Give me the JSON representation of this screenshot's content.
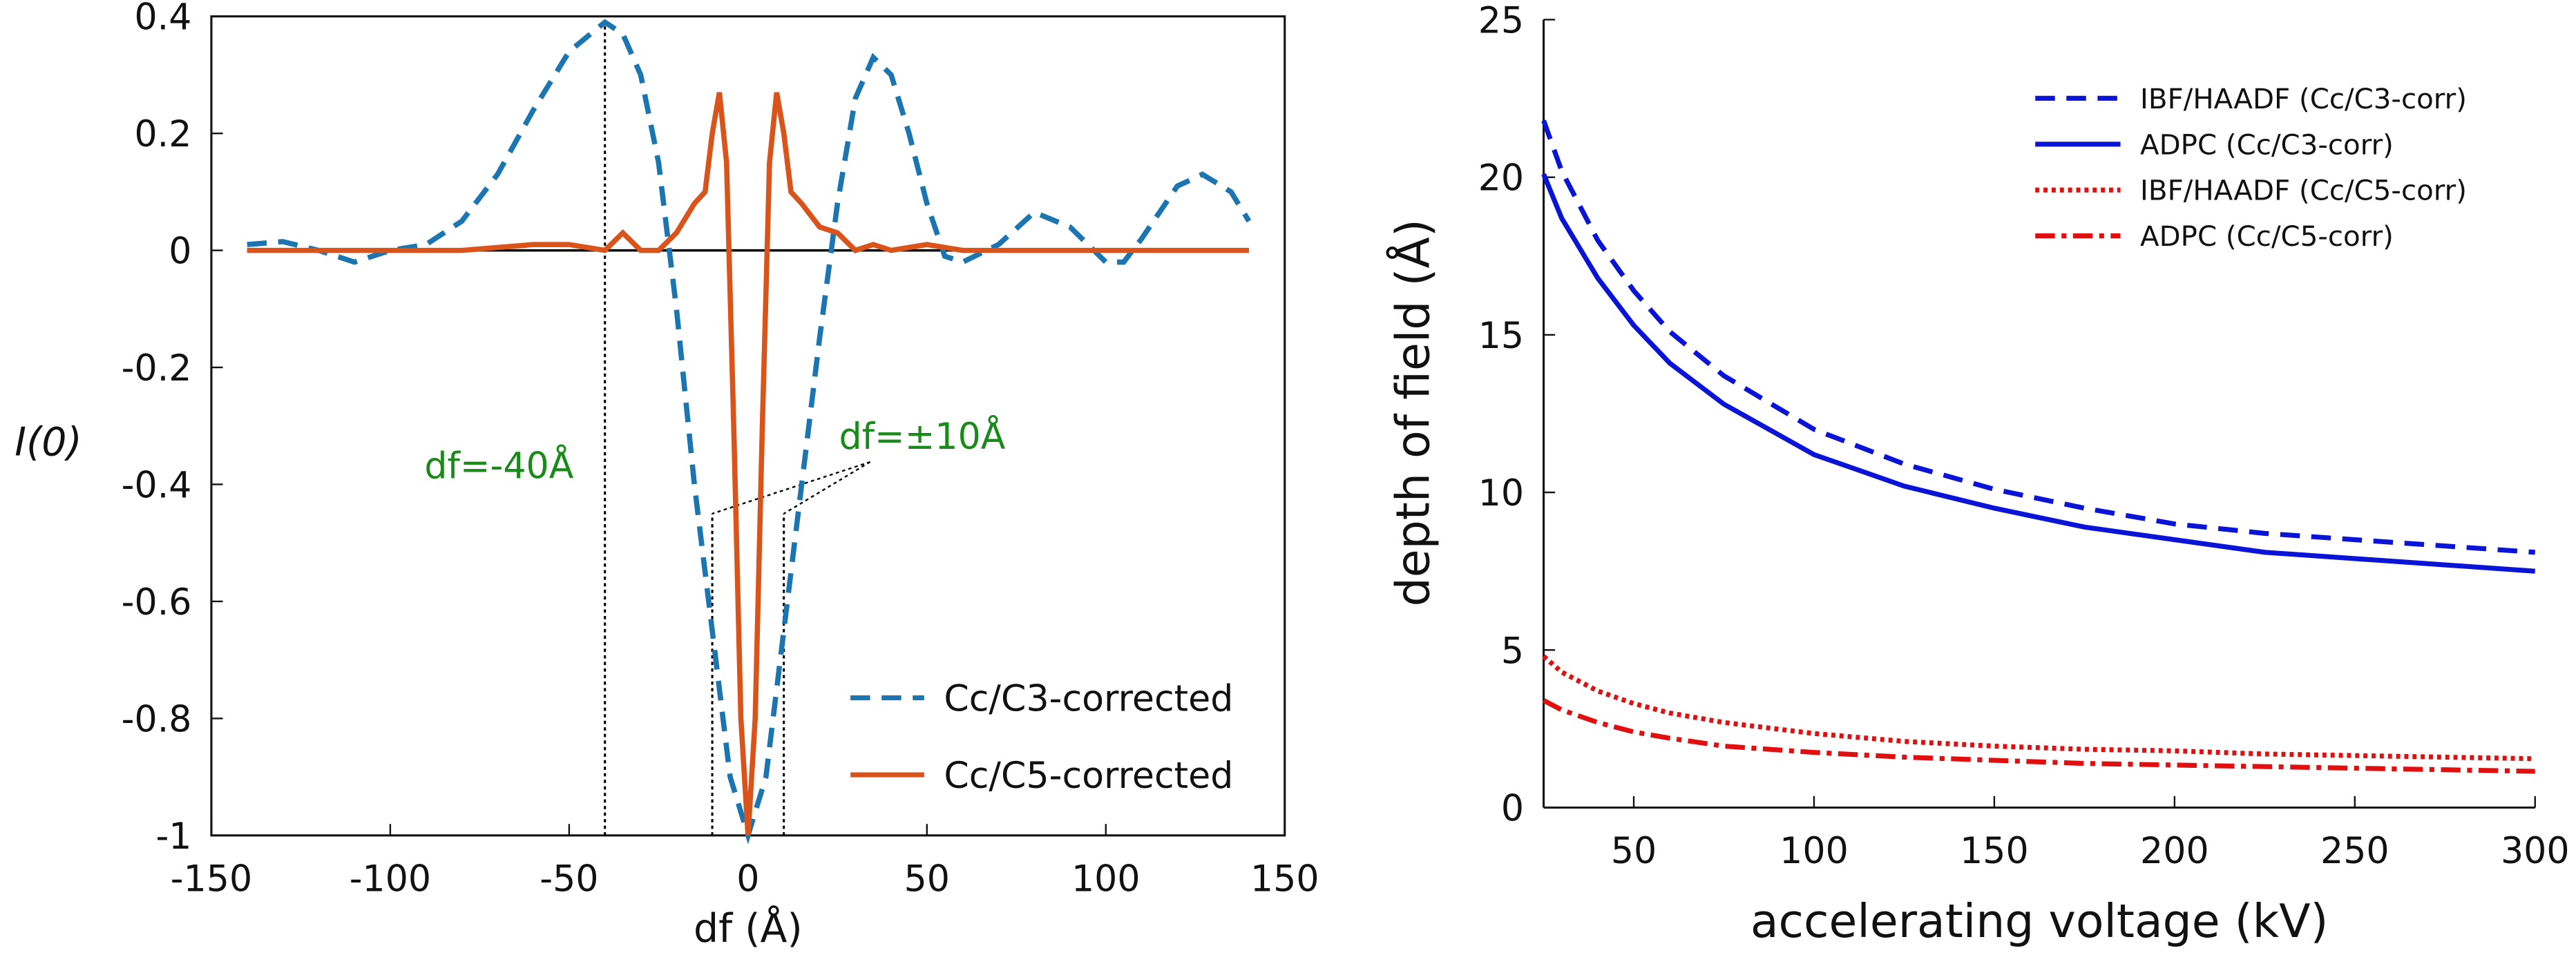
{
  "chart_data": [
    {
      "type": "line",
      "xlabel": "df (Å)",
      "ylabel": "I(0)",
      "xlim": [
        -150,
        150
      ],
      "xticks": [
        -150,
        -100,
        -50,
        0,
        50,
        100,
        150
      ],
      "ylim": [
        -1,
        0.4
      ],
      "yticks": [
        0.4,
        0.2,
        0,
        -0.2,
        -0.4,
        -0.6,
        -0.8,
        -1
      ],
      "legend": "lower right",
      "annotations": [
        "df=-40Å",
        "df=±10Å"
      ],
      "vlines": [
        {
          "x": -40,
          "y1": -1,
          "y2": 0.39
        },
        {
          "x": -10,
          "y1": -1,
          "y2": -0.45
        },
        {
          "x": 10,
          "y1": -1,
          "y2": -0.45
        }
      ],
      "series": [
        {
          "name": "Cc/C3-corrected",
          "color": "#1a75b0",
          "dash": "dashed",
          "x": [
            -140,
            -130,
            -120,
            -110,
            -100,
            -90,
            -80,
            -70,
            -60,
            -50,
            -40,
            -35,
            -30,
            -25,
            -20,
            -15,
            -10,
            -5,
            0,
            5,
            10,
            15,
            20,
            25,
            30,
            35,
            40,
            45,
            50,
            55,
            60,
            70,
            80,
            90,
            100,
            105,
            110,
            120,
            127,
            135,
            140
          ],
          "values": [
            0.01,
            0.015,
            0,
            -0.02,
            0,
            0.01,
            0.05,
            0.13,
            0.24,
            0.34,
            0.39,
            0.37,
            0.3,
            0.15,
            -0.1,
            -0.4,
            -0.65,
            -0.9,
            -1,
            -0.9,
            -0.65,
            -0.4,
            -0.15,
            0.08,
            0.26,
            0.33,
            0.3,
            0.2,
            0.08,
            -0.01,
            -0.02,
            0.01,
            0.065,
            0.04,
            -0.02,
            -0.02,
            0.02,
            0.11,
            0.13,
            0.1,
            0.05
          ]
        },
        {
          "name": "Cc/C5-corrected",
          "color": "#d9541a",
          "dash": "solid",
          "x": [
            -140,
            -120,
            -100,
            -80,
            -60,
            -50,
            -40,
            -35,
            -30,
            -25,
            -20,
            -15,
            -12,
            -10,
            -8,
            -6,
            -4,
            -2,
            0,
            2,
            4,
            6,
            8,
            10,
            12,
            15,
            20,
            25,
            30,
            35,
            40,
            50,
            60,
            80,
            100,
            120,
            140
          ],
          "values": [
            0,
            0,
            0,
            0,
            0.01,
            0.01,
            0,
            0.03,
            0,
            0,
            0.03,
            0.08,
            0.1,
            0.2,
            0.27,
            0.15,
            -0.3,
            -0.8,
            -1,
            -0.8,
            -0.3,
            0.15,
            0.27,
            0.2,
            0.1,
            0.08,
            0.04,
            0.03,
            0,
            0.01,
            0,
            0.01,
            0,
            0,
            0,
            0,
            0
          ]
        }
      ]
    },
    {
      "type": "line",
      "xlabel": "accelerating voltage (kV)",
      "ylabel": "depth of field (Å)",
      "xlim": [
        25,
        300
      ],
      "xticks": [
        50,
        100,
        150,
        200,
        250,
        300
      ],
      "ylim": [
        0,
        25
      ],
      "yticks": [
        0,
        5,
        10,
        15,
        20,
        25
      ],
      "legend": "upper right",
      "x": [
        25,
        30,
        40,
        50,
        60,
        75,
        100,
        125,
        150,
        175,
        200,
        225,
        250,
        275,
        300
      ],
      "series": [
        {
          "name": "IBF/HAADF (Cc/C3-corr)",
          "color": "#0a14d6",
          "dash": "dashed",
          "values": [
            21.8,
            20.2,
            18.0,
            16.4,
            15.1,
            13.7,
            12.0,
            10.9,
            10.1,
            9.5,
            9.0,
            8.7,
            8.5,
            8.3,
            8.1
          ]
        },
        {
          "name": "ADPC (Cc/C3-corr)",
          "color": "#0a14d6",
          "dash": "solid",
          "values": [
            20.1,
            18.7,
            16.8,
            15.3,
            14.1,
            12.8,
            11.2,
            10.2,
            9.5,
            8.9,
            8.5,
            8.1,
            7.9,
            7.7,
            7.5
          ]
        },
        {
          "name": "IBF/HAADF (Cc/C5-corr)",
          "color": "#e01010",
          "dash": "dotted",
          "values": [
            4.8,
            4.3,
            3.7,
            3.3,
            3.0,
            2.7,
            2.35,
            2.1,
            1.95,
            1.85,
            1.8,
            1.7,
            1.65,
            1.6,
            1.55
          ]
        },
        {
          "name": "ADPC (Cc/C5-corr)",
          "color": "#e01010",
          "dash": "dashdot",
          "values": [
            3.4,
            3.1,
            2.7,
            2.4,
            2.2,
            1.95,
            1.75,
            1.6,
            1.5,
            1.4,
            1.35,
            1.3,
            1.25,
            1.2,
            1.15
          ]
        }
      ]
    }
  ]
}
